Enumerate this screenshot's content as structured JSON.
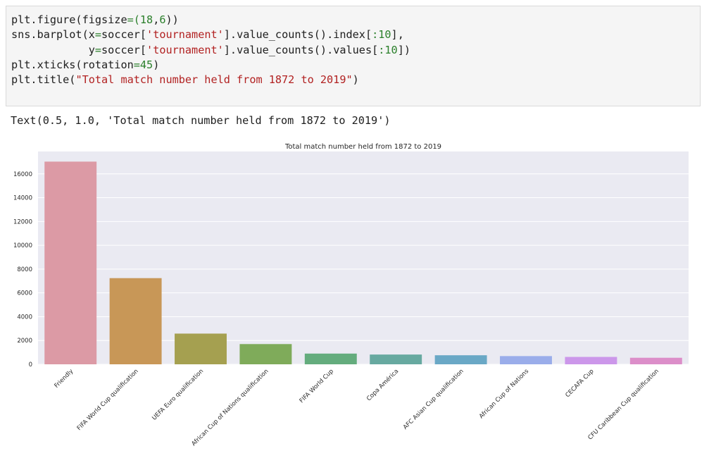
{
  "code_cell": {
    "lines": [
      [
        {
          "t": "plt.figure(figsize"
        },
        {
          "t": "=",
          "c": "g"
        },
        {
          "t": "(",
          "c": "g"
        },
        {
          "t": "18",
          "c": "g"
        },
        {
          "t": ","
        },
        {
          "t": "6",
          "c": "g"
        },
        {
          "t": "))"
        }
      ],
      [
        {
          "t": "sns.barplot(x"
        },
        {
          "t": "=",
          "c": "g"
        },
        {
          "t": "soccer["
        },
        {
          "t": "'tournament'",
          "c": "r"
        },
        {
          "t": "].value_counts().index["
        },
        {
          "t": ":",
          "c": "g"
        },
        {
          "t": "10",
          "c": "g"
        },
        {
          "t": "],"
        }
      ],
      [
        {
          "t": "            y"
        },
        {
          "t": "=",
          "c": "g"
        },
        {
          "t": "soccer["
        },
        {
          "t": "'tournament'",
          "c": "r"
        },
        {
          "t": "].value_counts().values["
        },
        {
          "t": ":",
          "c": "g"
        },
        {
          "t": "10",
          "c": "g"
        },
        {
          "t": "])"
        }
      ],
      [
        {
          "t": "plt.xticks(rotation"
        },
        {
          "t": "=",
          "c": "g"
        },
        {
          "t": "45",
          "c": "g"
        },
        {
          "t": ")"
        }
      ],
      [
        {
          "t": "plt.title("
        },
        {
          "t": "\"Total match number held from 1872 to 2019\"",
          "c": "r"
        },
        {
          "t": ")"
        }
      ]
    ]
  },
  "output": {
    "text": "Text(0.5, 1.0, 'Total match number held from 1872 to 2019')"
  },
  "chart_data": {
    "type": "bar",
    "title": "Total match number held from 1872 to 2019",
    "xlabel": "",
    "ylabel": "",
    "categories": [
      "Friendly",
      "FIFA World Cup qualification",
      "UEFA Euro qualification",
      "African Cup of Nations qualification",
      "FIFA World Cup",
      "Copa América",
      "AFC Asian Cup qualification",
      "African Cup of Nations",
      "CECAFA Cup",
      "CFU Caribbean Cup qualification"
    ],
    "values": [
      17030,
      7240,
      2580,
      1700,
      900,
      820,
      760,
      690,
      620,
      550
    ],
    "colors": [
      "#dc9aa5",
      "#c89757",
      "#a5a050",
      "#7fab5a",
      "#64ac7d",
      "#67a9a0",
      "#6aa8c6",
      "#9aadea",
      "#cc97ea",
      "#dc8ec9"
    ],
    "yticks": [
      0,
      2000,
      4000,
      6000,
      8000,
      10000,
      12000,
      14000,
      16000
    ],
    "ylim": [
      0,
      17880
    ],
    "grid": true,
    "background": "#eaeaf2"
  }
}
